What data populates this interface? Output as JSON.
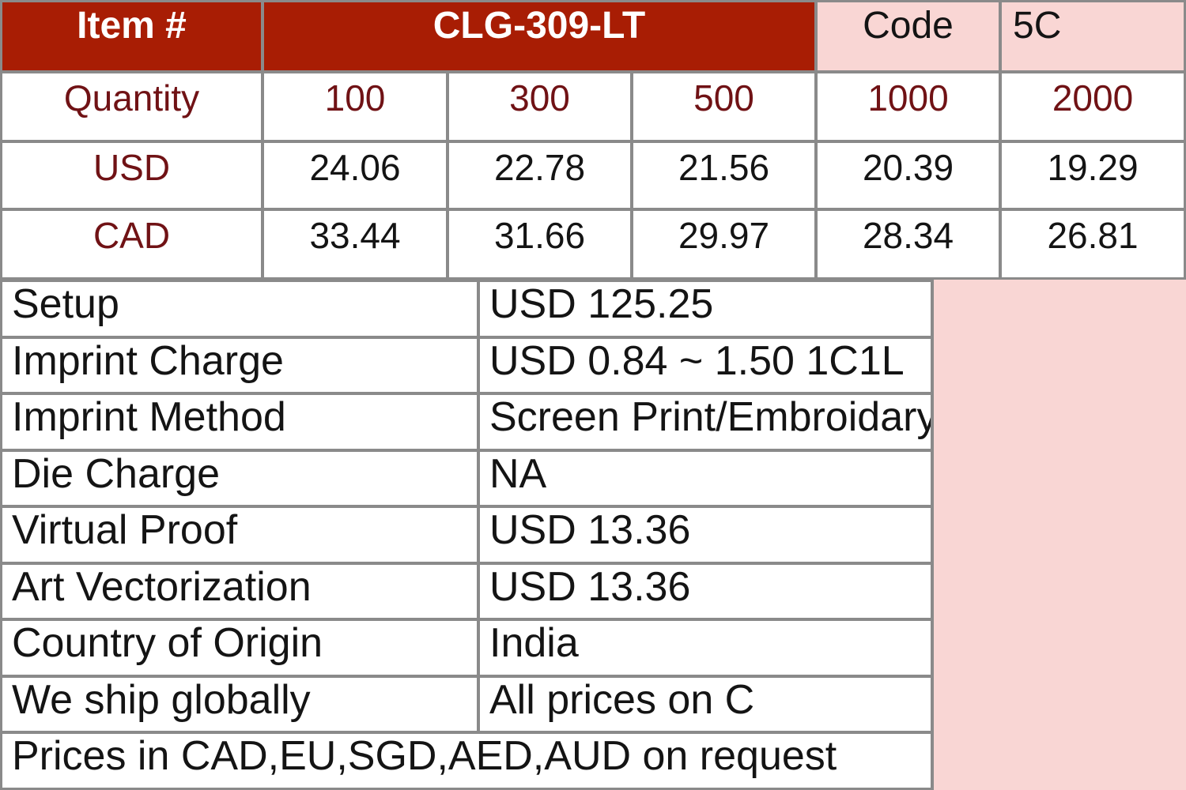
{
  "header": {
    "item_label": "Item #",
    "item_number": "CLG-309-LT",
    "code_label": "Code",
    "code_value": "5C"
  },
  "price_table": {
    "quantity_label": "Quantity",
    "quantities": [
      "100",
      "300",
      "500",
      "1000",
      "2000"
    ],
    "rows": [
      {
        "currency": "USD",
        "prices": [
          "24.06",
          "22.78",
          "21.56",
          "20.39",
          "19.29"
        ]
      },
      {
        "currency": "CAD",
        "prices": [
          "33.44",
          "31.66",
          "29.97",
          "28.34",
          "26.81"
        ]
      }
    ]
  },
  "details": [
    {
      "label": "Setup",
      "value": "USD 125.25"
    },
    {
      "label": "Imprint Charge",
      "value": "USD 0.84 ~ 1.50 1C1L"
    },
    {
      "label": "Imprint Method",
      "value": "Screen Print/Embroidary"
    },
    {
      "label": "Die Charge",
      "value": "NA"
    },
    {
      "label": "Virtual Proof",
      "value": "USD 13.36"
    },
    {
      "label": "Art Vectorization",
      "value": "USD 13.36"
    },
    {
      "label": "Country of Origin",
      "value": "India"
    },
    {
      "label": "We ship globally",
      "value": "All prices on C"
    }
  ],
  "footer_note": "Prices in CAD,EU,SGD,AED,AUD on request",
  "colors": {
    "header_red": "#a81d04",
    "pink": "#f9d6d4",
    "maroon_text": "#701215",
    "border_gray": "#8a8a8a",
    "body_text": "#141414"
  }
}
